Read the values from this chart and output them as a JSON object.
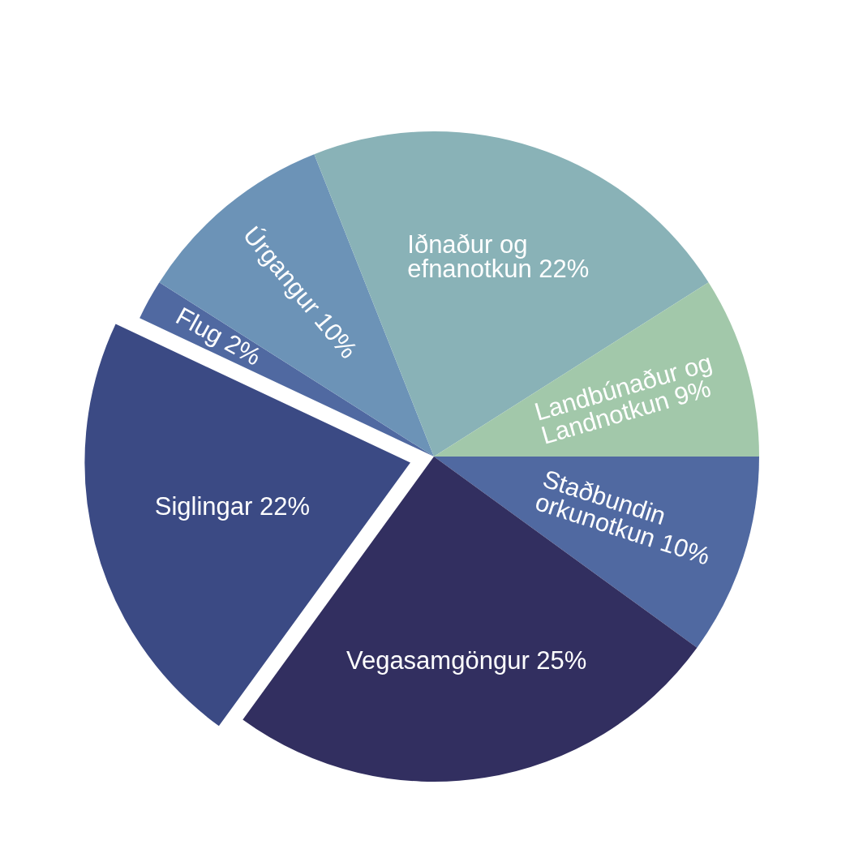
{
  "chart_data": {
    "type": "pie",
    "categories": [
      "Staðbundin orkunotkun",
      "Vegasamgöngur",
      "Siglingar",
      "Flug",
      "Úrgangur",
      "Iðnaður og efnanotkun",
      "Landbúnaður og Landnotkun"
    ],
    "values": [
      10,
      25,
      22,
      2,
      10,
      22,
      9
    ],
    "colors": [
      "#5069a1",
      "#322f60",
      "#3b4a84",
      "#5069a1",
      "#6c93b7",
      "#89b2b7",
      "#a2c8aa"
    ],
    "value_labels": [
      "10%",
      "25%",
      "22%",
      "2%",
      "10%",
      "22%",
      "9%"
    ]
  }
}
